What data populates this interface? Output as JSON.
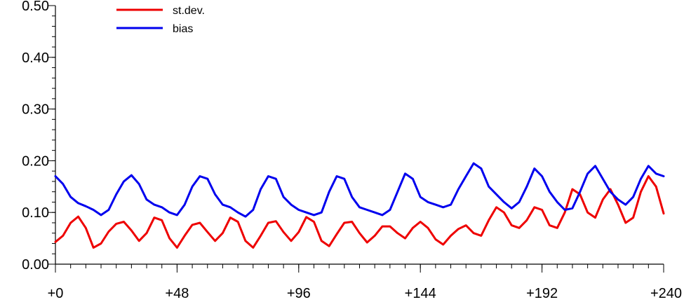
{
  "chart_data": {
    "type": "line",
    "title": "",
    "xlabel": "",
    "ylabel": "",
    "xlim": [
      0,
      240
    ],
    "ylim": [
      0,
      0.5
    ],
    "grid": false,
    "legend_position": "top-left",
    "x_ticks": [
      {
        "value": 0,
        "label": "+0"
      },
      {
        "value": 48,
        "label": "+48"
      },
      {
        "value": 96,
        "label": "+96"
      },
      {
        "value": 144,
        "label": "+144"
      },
      {
        "value": 192,
        "label": "+192"
      },
      {
        "value": 240,
        "label": "+240"
      }
    ],
    "x_minor_step": 6,
    "y_ticks": [
      {
        "value": 0.0,
        "label": "0.00"
      },
      {
        "value": 0.1,
        "label": "0.10"
      },
      {
        "value": 0.2,
        "label": "0.20"
      },
      {
        "value": 0.3,
        "label": "0.30"
      },
      {
        "value": 0.4,
        "label": "0.40"
      },
      {
        "value": 0.5,
        "label": "0.50"
      }
    ],
    "y_minor_step": 0.02,
    "series": [
      {
        "name": "st.dev.",
        "color": "#ee0000",
        "points": [
          [
            0,
            0.043
          ],
          [
            3,
            0.055
          ],
          [
            6,
            0.08
          ],
          [
            9,
            0.092
          ],
          [
            12,
            0.07
          ],
          [
            15,
            0.032
          ],
          [
            18,
            0.04
          ],
          [
            21,
            0.063
          ],
          [
            24,
            0.078
          ],
          [
            27,
            0.082
          ],
          [
            30,
            0.065
          ],
          [
            33,
            0.045
          ],
          [
            36,
            0.06
          ],
          [
            39,
            0.09
          ],
          [
            42,
            0.085
          ],
          [
            45,
            0.05
          ],
          [
            48,
            0.032
          ],
          [
            51,
            0.055
          ],
          [
            54,
            0.076
          ],
          [
            57,
            0.08
          ],
          [
            60,
            0.062
          ],
          [
            63,
            0.045
          ],
          [
            66,
            0.06
          ],
          [
            69,
            0.09
          ],
          [
            72,
            0.082
          ],
          [
            75,
            0.045
          ],
          [
            78,
            0.032
          ],
          [
            81,
            0.055
          ],
          [
            84,
            0.08
          ],
          [
            87,
            0.083
          ],
          [
            90,
            0.062
          ],
          [
            93,
            0.045
          ],
          [
            96,
            0.062
          ],
          [
            99,
            0.091
          ],
          [
            102,
            0.082
          ],
          [
            105,
            0.045
          ],
          [
            108,
            0.035
          ],
          [
            111,
            0.058
          ],
          [
            114,
            0.08
          ],
          [
            117,
            0.082
          ],
          [
            120,
            0.06
          ],
          [
            123,
            0.042
          ],
          [
            126,
            0.055
          ],
          [
            129,
            0.073
          ],
          [
            132,
            0.073
          ],
          [
            135,
            0.06
          ],
          [
            138,
            0.05
          ],
          [
            141,
            0.07
          ],
          [
            144,
            0.082
          ],
          [
            147,
            0.07
          ],
          [
            150,
            0.048
          ],
          [
            153,
            0.038
          ],
          [
            156,
            0.055
          ],
          [
            159,
            0.068
          ],
          [
            162,
            0.075
          ],
          [
            165,
            0.06
          ],
          [
            168,
            0.055
          ],
          [
            171,
            0.085
          ],
          [
            174,
            0.11
          ],
          [
            177,
            0.1
          ],
          [
            180,
            0.075
          ],
          [
            183,
            0.07
          ],
          [
            186,
            0.085
          ],
          [
            189,
            0.11
          ],
          [
            192,
            0.105
          ],
          [
            195,
            0.075
          ],
          [
            198,
            0.07
          ],
          [
            201,
            0.1
          ],
          [
            204,
            0.145
          ],
          [
            207,
            0.135
          ],
          [
            210,
            0.1
          ],
          [
            213,
            0.09
          ],
          [
            216,
            0.125
          ],
          [
            219,
            0.145
          ],
          [
            222,
            0.115
          ],
          [
            225,
            0.08
          ],
          [
            228,
            0.09
          ],
          [
            231,
            0.14
          ],
          [
            234,
            0.17
          ],
          [
            237,
            0.15
          ],
          [
            240,
            0.098
          ]
        ]
      },
      {
        "name": "bias",
        "color": "#0000ee",
        "points": [
          [
            0,
            0.17
          ],
          [
            3,
            0.155
          ],
          [
            6,
            0.13
          ],
          [
            9,
            0.118
          ],
          [
            12,
            0.112
          ],
          [
            15,
            0.105
          ],
          [
            18,
            0.095
          ],
          [
            21,
            0.105
          ],
          [
            24,
            0.135
          ],
          [
            27,
            0.16
          ],
          [
            30,
            0.172
          ],
          [
            33,
            0.155
          ],
          [
            36,
            0.125
          ],
          [
            39,
            0.115
          ],
          [
            42,
            0.11
          ],
          [
            45,
            0.1
          ],
          [
            48,
            0.095
          ],
          [
            51,
            0.115
          ],
          [
            54,
            0.15
          ],
          [
            57,
            0.17
          ],
          [
            60,
            0.165
          ],
          [
            63,
            0.135
          ],
          [
            66,
            0.115
          ],
          [
            69,
            0.11
          ],
          [
            72,
            0.1
          ],
          [
            75,
            0.092
          ],
          [
            78,
            0.105
          ],
          [
            81,
            0.145
          ],
          [
            84,
            0.17
          ],
          [
            87,
            0.165
          ],
          [
            90,
            0.13
          ],
          [
            93,
            0.115
          ],
          [
            96,
            0.105
          ],
          [
            99,
            0.1
          ],
          [
            102,
            0.095
          ],
          [
            105,
            0.1
          ],
          [
            108,
            0.14
          ],
          [
            111,
            0.17
          ],
          [
            114,
            0.165
          ],
          [
            117,
            0.13
          ],
          [
            120,
            0.11
          ],
          [
            123,
            0.105
          ],
          [
            126,
            0.1
          ],
          [
            129,
            0.095
          ],
          [
            132,
            0.105
          ],
          [
            135,
            0.14
          ],
          [
            138,
            0.175
          ],
          [
            141,
            0.165
          ],
          [
            144,
            0.13
          ],
          [
            147,
            0.12
          ],
          [
            150,
            0.115
          ],
          [
            153,
            0.11
          ],
          [
            156,
            0.115
          ],
          [
            159,
            0.145
          ],
          [
            162,
            0.17
          ],
          [
            165,
            0.195
          ],
          [
            168,
            0.185
          ],
          [
            171,
            0.15
          ],
          [
            174,
            0.135
          ],
          [
            177,
            0.12
          ],
          [
            180,
            0.108
          ],
          [
            183,
            0.12
          ],
          [
            186,
            0.15
          ],
          [
            189,
            0.185
          ],
          [
            192,
            0.17
          ],
          [
            195,
            0.14
          ],
          [
            198,
            0.12
          ],
          [
            201,
            0.105
          ],
          [
            204,
            0.108
          ],
          [
            207,
            0.14
          ],
          [
            210,
            0.175
          ],
          [
            213,
            0.19
          ],
          [
            216,
            0.165
          ],
          [
            219,
            0.14
          ],
          [
            222,
            0.125
          ],
          [
            225,
            0.115
          ],
          [
            228,
            0.13
          ],
          [
            231,
            0.165
          ],
          [
            234,
            0.19
          ],
          [
            237,
            0.175
          ],
          [
            240,
            0.17
          ]
        ]
      }
    ]
  }
}
